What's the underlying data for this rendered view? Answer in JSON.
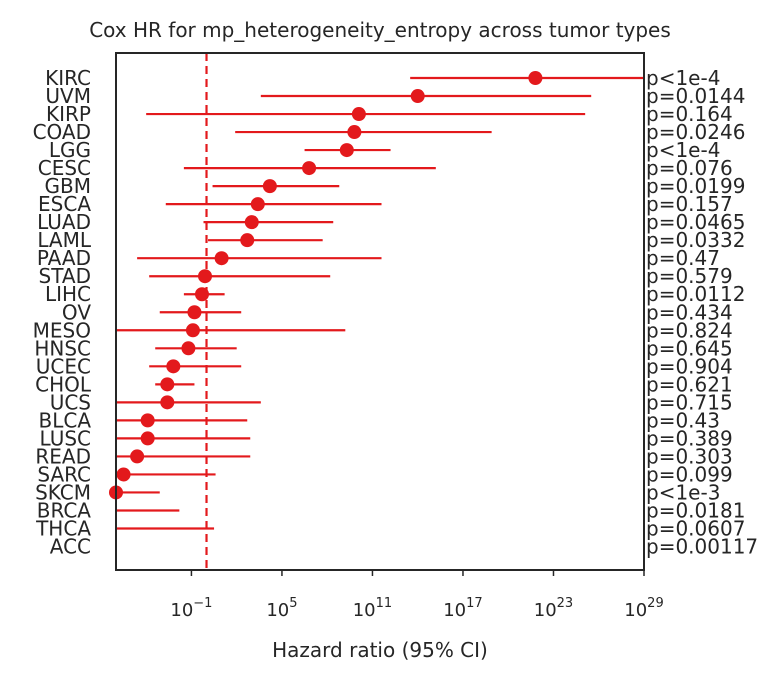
{
  "chart_data": {
    "type": "forest",
    "title": "Cox HR for mp_heterogeneity_entropy across tumor types",
    "xlabel": "Hazard ratio (95% CI)",
    "x_scale": "log10",
    "xlim_log10": [
      -6.0,
      29.0
    ],
    "x_ticks_log10": [
      -1,
      5,
      11,
      17,
      23,
      29
    ],
    "reference_line_hr": 1,
    "color": "#e3191c",
    "rows": [
      {
        "label": "KIRC",
        "log10_hr": 21.8,
        "log10_lo": 13.5,
        "log10_hi": 29.0,
        "p_label": "p<1e-4"
      },
      {
        "label": "UVM",
        "log10_hr": 14.0,
        "log10_lo": 3.6,
        "log10_hi": 25.5,
        "p_label": "p=0.0144"
      },
      {
        "label": "KIRP",
        "log10_hr": 10.1,
        "log10_lo": -4.0,
        "log10_hi": 25.1,
        "p_label": "p=0.164"
      },
      {
        "label": "COAD",
        "log10_hr": 9.8,
        "log10_lo": 1.9,
        "log10_hi": 18.9,
        "p_label": "p=0.0246"
      },
      {
        "label": "LGG",
        "log10_hr": 9.3,
        "log10_lo": 6.5,
        "log10_hi": 12.2,
        "p_label": "p<1e-4"
      },
      {
        "label": "CESC",
        "log10_hr": 6.8,
        "log10_lo": -1.5,
        "log10_hi": 15.2,
        "p_label": "p=0.076"
      },
      {
        "label": "GBM",
        "log10_hr": 4.2,
        "log10_lo": 0.4,
        "log10_hi": 8.8,
        "p_label": "p=0.0199"
      },
      {
        "label": "ESCA",
        "log10_hr": 3.4,
        "log10_lo": -2.7,
        "log10_hi": 11.6,
        "p_label": "p=0.157"
      },
      {
        "label": "LUAD",
        "log10_hr": 3.0,
        "log10_lo": -0.2,
        "log10_hi": 8.4,
        "p_label": "p=0.0465"
      },
      {
        "label": "LAML",
        "log10_hr": 2.7,
        "log10_lo": 0.1,
        "log10_hi": 7.7,
        "p_label": "p=0.0332"
      },
      {
        "label": "PAAD",
        "log10_hr": 1.0,
        "log10_lo": -4.6,
        "log10_hi": 11.6,
        "p_label": "p=0.47"
      },
      {
        "label": "STAD",
        "log10_hr": -0.1,
        "log10_lo": -3.8,
        "log10_hi": 8.2,
        "p_label": "p=0.579"
      },
      {
        "label": "LIHC",
        "log10_hr": -0.3,
        "log10_lo": -1.5,
        "log10_hi": 1.2,
        "p_label": "p=0.0112"
      },
      {
        "label": "OV",
        "log10_hr": -0.8,
        "log10_lo": -3.1,
        "log10_hi": 2.3,
        "p_label": "p=0.434"
      },
      {
        "label": "MESO",
        "log10_hr": -0.9,
        "log10_lo": -6.0,
        "log10_hi": 9.2,
        "p_label": "p=0.824"
      },
      {
        "label": "HNSC",
        "log10_hr": -1.2,
        "log10_lo": -3.4,
        "log10_hi": 2.0,
        "p_label": "p=0.645"
      },
      {
        "label": "UCEC",
        "log10_hr": -2.2,
        "log10_lo": -3.8,
        "log10_hi": 2.3,
        "p_label": "p=0.904"
      },
      {
        "label": "CHOL",
        "log10_hr": -2.6,
        "log10_lo": -3.4,
        "log10_hi": -0.8,
        "p_label": "p=0.621"
      },
      {
        "label": "UCS",
        "log10_hr": -2.6,
        "log10_lo": -6.0,
        "log10_hi": 3.6,
        "p_label": "p=0.715"
      },
      {
        "label": "BLCA",
        "log10_hr": -3.9,
        "log10_lo": -6.0,
        "log10_hi": 2.7,
        "p_label": "p=0.43"
      },
      {
        "label": "LUSC",
        "log10_hr": -3.9,
        "log10_lo": -6.0,
        "log10_hi": 2.9,
        "p_label": "p=0.389"
      },
      {
        "label": "READ",
        "log10_hr": -4.6,
        "log10_lo": -6.0,
        "log10_hi": 2.9,
        "p_label": "p=0.303"
      },
      {
        "label": "SARC",
        "log10_hr": -5.5,
        "log10_lo": -6.0,
        "log10_hi": 0.6,
        "p_label": "p=0.099"
      },
      {
        "label": "SKCM",
        "log10_hr": -6.0,
        "log10_lo": -6.0,
        "log10_hi": -3.1,
        "p_label": "p<1e-3"
      },
      {
        "label": "BRCA",
        "log10_hr": null,
        "log10_lo": -6.0,
        "log10_hi": -1.8,
        "p_label": "p=0.0181"
      },
      {
        "label": "THCA",
        "log10_hr": null,
        "log10_lo": -6.0,
        "log10_hi": 0.5,
        "p_label": "p=0.0607"
      },
      {
        "label": "ACC",
        "log10_hr": null,
        "log10_lo": null,
        "log10_hi": null,
        "p_label": "p=0.00117"
      }
    ]
  }
}
